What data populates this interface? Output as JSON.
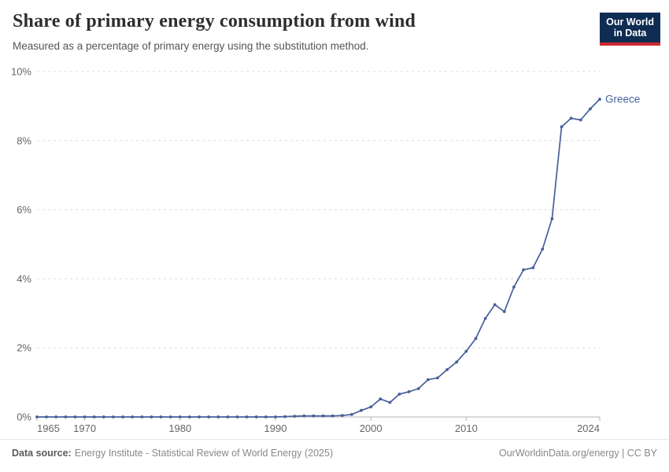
{
  "header": {
    "title": "Share of primary energy consumption from wind",
    "subtitle": "Measured as a percentage of primary energy using the substitution method.",
    "logo": {
      "line1": "Our World",
      "line2": "in Data",
      "bg_color": "#0f2d52",
      "bar_color": "#cf2832"
    }
  },
  "chart_data": {
    "type": "line",
    "title": "Share of primary energy consumption from wind",
    "xlabel": "",
    "ylabel": "",
    "xlim": [
      1965,
      2024
    ],
    "ylim": [
      0,
      10
    ],
    "grid": "horizontal dashed",
    "legend_position": "end-of-line label",
    "xticks": [
      1965,
      1970,
      1980,
      1990,
      2000,
      2010,
      2024
    ],
    "yticks": [
      0,
      2,
      4,
      6,
      8,
      10
    ],
    "ytick_suffix": "%",
    "colors": {
      "line": "#46609a",
      "grid": "#dedede",
      "axis": "#b5b5b5",
      "tick_text": "#666666"
    },
    "series": [
      {
        "name": "Greece",
        "color": "#46609a",
        "years": [
          1965,
          1966,
          1967,
          1968,
          1969,
          1970,
          1971,
          1972,
          1973,
          1974,
          1975,
          1976,
          1977,
          1978,
          1979,
          1980,
          1981,
          1982,
          1983,
          1984,
          1985,
          1986,
          1987,
          1988,
          1989,
          1990,
          1991,
          1992,
          1993,
          1994,
          1995,
          1996,
          1997,
          1998,
          1999,
          2000,
          2001,
          2002,
          2003,
          2004,
          2005,
          2006,
          2007,
          2008,
          2009,
          2010,
          2011,
          2012,
          2013,
          2014,
          2015,
          2016,
          2017,
          2018,
          2019,
          2020,
          2021,
          2022,
          2023,
          2024
        ],
        "values": [
          0,
          0,
          0,
          0,
          0,
          0,
          0,
          0,
          0,
          0,
          0,
          0,
          0,
          0,
          0,
          0,
          0,
          0,
          0,
          0,
          0,
          0,
          0,
          0,
          0,
          0,
          0.01,
          0.02,
          0.03,
          0.03,
          0.03,
          0.03,
          0.04,
          0.07,
          0.19,
          0.29,
          0.52,
          0.42,
          0.66,
          0.73,
          0.82,
          1.08,
          1.13,
          1.37,
          1.59,
          1.9,
          2.27,
          2.85,
          3.25,
          3.05,
          3.76,
          4.26,
          4.32,
          4.86,
          5.74,
          8.4,
          8.65,
          8.6,
          8.92,
          9.2
        ]
      }
    ]
  },
  "footer": {
    "source_label": "Data source:",
    "source_text": "Energy Institute - Statistical Review of World Energy (2025)",
    "link_text": "OurWorldinData.org/energy | CC BY"
  }
}
